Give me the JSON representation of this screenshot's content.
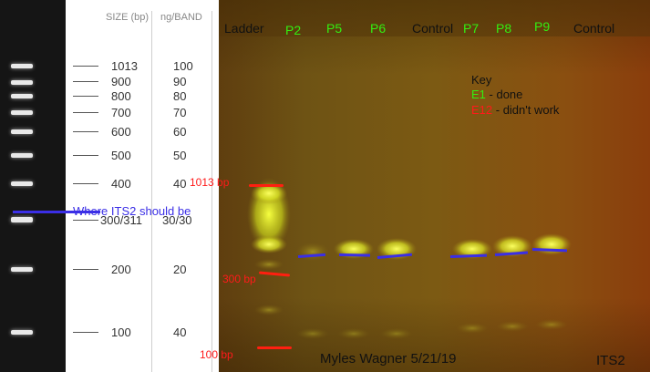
{
  "reference_ladder": {
    "size_header": "SIZE (bp)",
    "ng_header": "ng/BAND",
    "rows": [
      {
        "size": "1013",
        "ng": "100"
      },
      {
        "size": "900",
        "ng": "90"
      },
      {
        "size": "800",
        "ng": "80"
      },
      {
        "size": "700",
        "ng": "70"
      },
      {
        "size": "600",
        "ng": "60"
      },
      {
        "size": "500",
        "ng": "50"
      },
      {
        "size": "400",
        "ng": "40"
      },
      {
        "size": "300/311",
        "ng": "30/30"
      },
      {
        "size": "200",
        "ng": "20"
      },
      {
        "size": "100",
        "ng": "40"
      }
    ],
    "annotation": "Where ITS2 should be"
  },
  "gel": {
    "lanes": [
      {
        "label": "Ladder",
        "status": "neutral"
      },
      {
        "label": "P2",
        "status": "done"
      },
      {
        "label": "P5",
        "status": "done"
      },
      {
        "label": "P6",
        "status": "done"
      },
      {
        "label": "Control",
        "status": "neutral"
      },
      {
        "label": "P7",
        "status": "done"
      },
      {
        "label": "P8",
        "status": "done"
      },
      {
        "label": "P9",
        "status": "done"
      },
      {
        "label": "Control",
        "status": "neutral"
      }
    ],
    "key": {
      "title": "Key",
      "done_code": "E1",
      "done_text": " - done",
      "fail_code": "E12",
      "fail_text": " - didn't work"
    },
    "markers": [
      {
        "label": "1013 bp"
      },
      {
        "label": "300 bp"
      },
      {
        "label": "100 bp"
      }
    ],
    "author_line": "Myles Wagner 5/21/19",
    "gene": "ITS2"
  },
  "colors": {
    "done": "#33ee11",
    "fail": "#ff1a1a",
    "annotation_blue": "#3a2ee6",
    "neutral_text": "#111111"
  }
}
